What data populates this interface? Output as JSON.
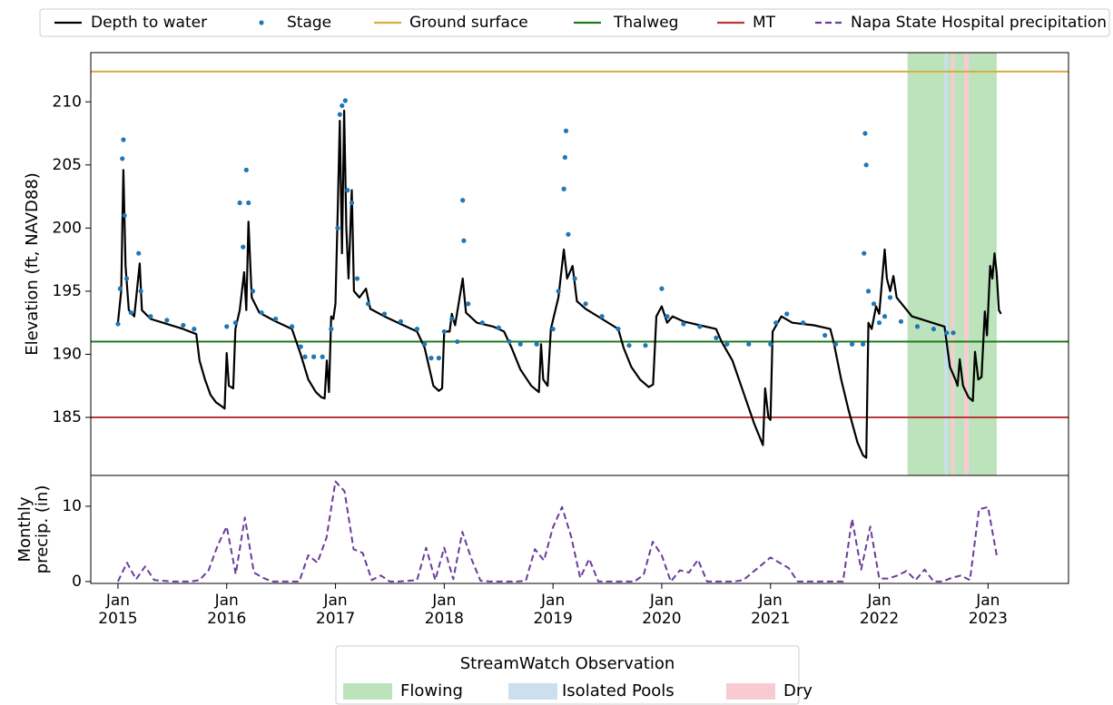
{
  "chart_data": [
    {
      "type": "line",
      "ylabel": "Elevation (ft, NAVD88)",
      "xlim": [
        2014.75,
        2023.74
      ],
      "ylim": [
        180.4,
        213.9
      ],
      "yticks": [
        185,
        190,
        195,
        200,
        205,
        210
      ],
      "series": [
        {
          "name": "Depth to water",
          "color": "#000000",
          "style": "line",
          "x": [
            2015.0,
            2015.03,
            2015.05,
            2015.07,
            2015.1,
            2015.15,
            2015.2,
            2015.22,
            2015.3,
            2015.45,
            2015.6,
            2015.72,
            2015.75,
            2015.8,
            2015.85,
            2015.9,
            2015.95,
            2015.98,
            2016.0,
            2016.02,
            2016.06,
            2016.08,
            2016.12,
            2016.16,
            2016.18,
            2016.2,
            2016.23,
            2016.3,
            2016.45,
            2016.6,
            2016.68,
            2016.75,
            2016.82,
            2016.87,
            2016.9,
            2016.92,
            2016.94,
            2016.96,
            2016.98,
            2017.0,
            2017.02,
            2017.04,
            2017.06,
            2017.08,
            2017.1,
            2017.12,
            2017.15,
            2017.17,
            2017.22,
            2017.28,
            2017.32,
            2017.45,
            2017.6,
            2017.75,
            2017.82,
            2017.86,
            2017.9,
            2017.95,
            2017.98,
            2018.0,
            2018.05,
            2018.07,
            2018.1,
            2018.17,
            2018.2,
            2018.3,
            2018.45,
            2018.55,
            2018.62,
            2018.7,
            2018.8,
            2018.87,
            2018.89,
            2018.91,
            2018.95,
            2018.98,
            2019.05,
            2019.1,
            2019.13,
            2019.18,
            2019.22,
            2019.3,
            2019.45,
            2019.6,
            2019.65,
            2019.72,
            2019.8,
            2019.88,
            2019.92,
            2019.95,
            2020.0,
            2020.05,
            2020.1,
            2020.2,
            2020.35,
            2020.5,
            2020.55,
            2020.65,
            2020.75,
            2020.85,
            2020.93,
            2020.95,
            2020.98,
            2021.0,
            2021.02,
            2021.1,
            2021.2,
            2021.4,
            2021.55,
            2021.58,
            2021.65,
            2021.72,
            2021.8,
            2021.85,
            2021.88,
            2021.9,
            2021.93,
            2021.97,
            2022.0,
            2022.05,
            2022.07,
            2022.1,
            2022.13,
            2022.16,
            2022.3,
            2022.45,
            2022.6,
            2022.65,
            2022.7,
            2022.72,
            2022.74,
            2022.77,
            2022.82,
            2022.86,
            2022.88,
            2022.91,
            2022.94,
            2022.97,
            2022.99,
            2023.02,
            2023.04,
            2023.06,
            2023.08,
            2023.1,
            2023.12
          ],
          "values": [
            192.5,
            195,
            204.6,
            197,
            193.5,
            193,
            197.2,
            193.5,
            192.8,
            192.4,
            192.0,
            191.6,
            189.5,
            188,
            186.8,
            186.2,
            185.9,
            185.7,
            190.1,
            187.5,
            187.3,
            192.0,
            193.5,
            196.5,
            193.5,
            200.5,
            194.5,
            193.3,
            192.6,
            192.0,
            190,
            188.0,
            187.0,
            186.6,
            186.5,
            189.5,
            187,
            193.0,
            192.8,
            194,
            201,
            208.5,
            198,
            209.3,
            200,
            196,
            203,
            195,
            194.5,
            195.2,
            193.6,
            193.0,
            192.4,
            191.8,
            190.5,
            189,
            187.5,
            187.1,
            187.3,
            191.8,
            191.8,
            193.2,
            192.3,
            196,
            193.3,
            192.5,
            192.2,
            191.8,
            190.5,
            188.8,
            187.5,
            187.0,
            190.8,
            188,
            187.5,
            192,
            194.5,
            198.3,
            196,
            197,
            194.2,
            193.6,
            192.8,
            192.0,
            190.5,
            189,
            188,
            187.4,
            187.6,
            193,
            193.8,
            192.5,
            193,
            192.6,
            192.3,
            192.0,
            191.0,
            189.5,
            187,
            184.5,
            182.8,
            187.3,
            185.0,
            184.8,
            191.8,
            193,
            192.5,
            192.3,
            192.0,
            191,
            188,
            185.5,
            183,
            182,
            181.8,
            192.5,
            192,
            193.8,
            193.2,
            198.3,
            196,
            195,
            196.2,
            194.5,
            193,
            192.6,
            192.2,
            189,
            188,
            187.5,
            189.6,
            187.5,
            186.6,
            186.3,
            190.2,
            188,
            188.2,
            193.4,
            191.5,
            197,
            196,
            198,
            196.4,
            193.5,
            193.2
          ]
        },
        {
          "name": "Stage",
          "color": "#1f77b4",
          "style": "scatter",
          "x": [
            2015.0,
            2015.02,
            2015.04,
            2015.05,
            2015.06,
            2015.08,
            2015.12,
            2015.19,
            2015.21,
            2015.3,
            2015.45,
            2015.6,
            2015.7,
            2016.0,
            2016.08,
            2016.12,
            2016.15,
            2016.18,
            2016.2,
            2016.24,
            2016.32,
            2016.45,
            2016.6,
            2016.68,
            2016.72,
            2016.8,
            2016.88,
            2016.96,
            2017.02,
            2017.04,
            2017.06,
            2017.09,
            2017.11,
            2017.15,
            2017.2,
            2017.3,
            2017.45,
            2017.6,
            2017.75,
            2017.82,
            2017.88,
            2017.95,
            2018.0,
            2018.07,
            2018.12,
            2018.17,
            2018.18,
            2018.22,
            2018.35,
            2018.5,
            2018.6,
            2018.7,
            2018.85,
            2019.0,
            2019.05,
            2019.1,
            2019.11,
            2019.12,
            2019.14,
            2019.2,
            2019.3,
            2019.45,
            2019.6,
            2019.7,
            2019.85,
            2020.0,
            2020.05,
            2020.2,
            2020.35,
            2020.5,
            2020.6,
            2020.8,
            2021.0,
            2021.05,
            2021.15,
            2021.3,
            2021.5,
            2021.6,
            2021.75,
            2021.85,
            2021.86,
            2021.87,
            2021.88,
            2021.9,
            2021.95,
            2022.0,
            2022.05,
            2022.1,
            2022.2,
            2022.35,
            2022.5,
            2022.62,
            2022.68
          ],
          "values": [
            192.4,
            195.2,
            205.5,
            207.0,
            201,
            196,
            193.3,
            198,
            195,
            193,
            192.7,
            192.3,
            192.0,
            192.2,
            192.5,
            202.0,
            198.5,
            204.6,
            202,
            195,
            193.3,
            192.8,
            192.2,
            190.6,
            189.8,
            189.8,
            189.8,
            192,
            200,
            209.0,
            209.7,
            210.1,
            203,
            202,
            196,
            194,
            193.2,
            192.6,
            192,
            190.8,
            189.7,
            189.7,
            191.8,
            192.8,
            191,
            202.2,
            199,
            194,
            192.5,
            192.1,
            191,
            190.8,
            190.8,
            192,
            195,
            203.1,
            205.6,
            207.7,
            199.5,
            196,
            194,
            193,
            192,
            190.7,
            190.7,
            195.2,
            193,
            192.4,
            192.2,
            191.3,
            190.8,
            190.8,
            190.8,
            192.5,
            193.2,
            192.5,
            191.5,
            190.8,
            190.8,
            190.8,
            198,
            207.5,
            205,
            195,
            194,
            192.5,
            193,
            194.5,
            192.6,
            192.2,
            192,
            191.7,
            191.7
          ]
        }
      ],
      "hlines": [
        {
          "name": "Ground surface",
          "color": "#d6ad3c",
          "value": 212.4
        },
        {
          "name": "Thalweg",
          "color": "#1e7b1e",
          "value": 191.0
        },
        {
          "name": "MT",
          "color": "#b8393a",
          "value": 185.0
        }
      ],
      "streamwatch": {
        "title": "StreamWatch Observation",
        "categories": [
          {
            "name": "Flowing",
            "color": "#a6d9a6",
            "spans": [
              [
                2022.26,
                2022.6
              ],
              [
                2022.63,
                2022.66
              ],
              [
                2022.69,
                2022.78
              ],
              [
                2022.82,
                2023.08
              ]
            ]
          },
          {
            "name": "Isolated Pools",
            "color": "#b9d4ea",
            "spans": [
              [
                2022.6,
                2022.63
              ]
            ]
          },
          {
            "name": "Dry",
            "color": "#f5b8c2",
            "spans": [
              [
                2022.66,
                2022.69
              ],
              [
                2022.78,
                2022.82
              ]
            ]
          }
        ]
      }
    },
    {
      "type": "line",
      "ylabel": [
        "Monthly",
        "precip. (in)"
      ],
      "xlim": [
        2014.75,
        2023.74
      ],
      "ylim": [
        -0.25,
        14.1
      ],
      "yticks": [
        0,
        10
      ],
      "xticks": [
        {
          "value": 2015,
          "label": "Jan\n2015"
        },
        {
          "value": 2016,
          "label": "Jan\n2016"
        },
        {
          "value": 2017,
          "label": "Jan\n2017"
        },
        {
          "value": 2018,
          "label": "Jan\n2018"
        },
        {
          "value": 2019,
          "label": "Jan\n2019"
        },
        {
          "value": 2020,
          "label": "Jan\n2020"
        },
        {
          "value": 2021,
          "label": "Jan\n2021"
        },
        {
          "value": 2022,
          "label": "Jan\n2022"
        },
        {
          "value": 2023,
          "label": "Jan\n2023"
        }
      ],
      "series": [
        {
          "name": "Napa State Hospital precipitation",
          "color": "#6a3d9a",
          "dashed": true,
          "x": [
            "2015-01",
            "2015-02",
            "2015-03",
            "2015-04",
            "2015-05",
            "2015-06",
            "2015-07",
            "2015-08",
            "2015-09",
            "2015-10",
            "2015-11",
            "2015-12",
            "2016-01",
            "2016-02",
            "2016-03",
            "2016-04",
            "2016-05",
            "2016-06",
            "2016-07",
            "2016-08",
            "2016-09",
            "2016-10",
            "2016-11",
            "2016-12",
            "2017-01",
            "2017-02",
            "2017-03",
            "2017-04",
            "2017-05",
            "2017-06",
            "2017-07",
            "2017-08",
            "2017-09",
            "2017-10",
            "2017-11",
            "2017-12",
            "2018-01",
            "2018-02",
            "2018-03",
            "2018-04",
            "2018-05",
            "2018-06",
            "2018-07",
            "2018-08",
            "2018-09",
            "2018-10",
            "2018-11",
            "2018-12",
            "2019-01",
            "2019-02",
            "2019-03",
            "2019-04",
            "2019-05",
            "2019-06",
            "2019-07",
            "2019-08",
            "2019-09",
            "2019-10",
            "2019-11",
            "2019-12",
            "2020-01",
            "2020-02",
            "2020-03",
            "2020-04",
            "2020-05",
            "2020-06",
            "2020-07",
            "2020-08",
            "2020-09",
            "2020-10",
            "2020-11",
            "2020-12",
            "2021-01",
            "2021-02",
            "2021-03",
            "2021-04",
            "2021-05",
            "2021-06",
            "2021-07",
            "2021-08",
            "2021-09",
            "2021-10",
            "2021-11",
            "2021-12",
            "2022-01",
            "2022-02",
            "2022-03",
            "2022-04",
            "2022-05",
            "2022-06",
            "2022-07",
            "2022-08",
            "2022-09",
            "2022-10",
            "2022-11",
            "2022-12",
            "2023-01",
            "2023-02"
          ],
          "values": [
            0,
            2.5,
            0.3,
            2,
            0.2,
            0.1,
            0,
            0,
            0,
            0.2,
            1.5,
            4.8,
            7.3,
            1,
            8.5,
            1.2,
            0.5,
            0,
            0,
            0,
            0,
            3.5,
            2.5,
            5.8,
            13.3,
            12,
            4.3,
            3.8,
            0.2,
            0.8,
            0,
            0,
            0.1,
            0.2,
            4.5,
            0.2,
            4.5,
            0.3,
            6.6,
            3,
            0.1,
            0,
            0,
            0,
            0,
            0.1,
            4.3,
            2.8,
            7.2,
            9.9,
            6,
            0.5,
            3,
            0,
            0,
            0,
            0,
            0,
            0.9,
            5.3,
            3.5,
            0,
            1.5,
            1.2,
            2.9,
            0,
            0,
            0,
            0,
            0.2,
            1.2,
            2.2,
            3.2,
            2.5,
            1.8,
            0,
            0,
            0,
            0,
            0,
            0,
            8.3,
            1.6,
            7.3,
            0.4,
            0.4,
            0.8,
            1.4,
            0.2,
            1.6,
            0,
            0,
            0.5,
            0.8,
            0.2,
            9.6,
            9.9,
            3.2
          ]
        }
      ]
    }
  ]
}
